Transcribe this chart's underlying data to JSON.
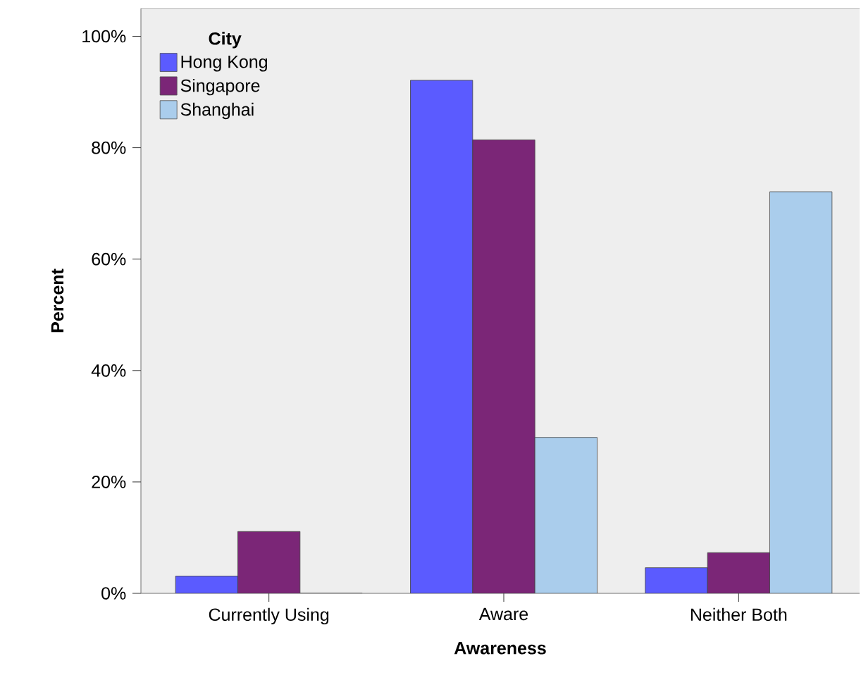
{
  "chart_data": {
    "type": "bar",
    "xlabel": "Awareness",
    "ylabel": "Percent",
    "legend_title": "City",
    "categories": [
      "Currently Using",
      "Aware",
      "Neither Both"
    ],
    "series": [
      {
        "name": "Hong Kong",
        "color": "#5b5bff",
        "values": [
          3.1,
          92.1,
          4.6
        ]
      },
      {
        "name": "Singapore",
        "color": "#7b2677",
        "values": [
          11.1,
          81.4,
          7.3
        ]
      },
      {
        "name": "Shanghai",
        "color": "#aacdec",
        "values": [
          0,
          28.0,
          72.1
        ]
      }
    ],
    "ylim": [
      0,
      105
    ],
    "yticks": [
      {
        "value": 0,
        "label": "0%"
      },
      {
        "value": 20,
        "label": "20%"
      },
      {
        "value": 40,
        "label": "40%"
      },
      {
        "value": 60,
        "label": "60%"
      },
      {
        "value": 80,
        "label": "80%"
      },
      {
        "value": 100,
        "label": "100%"
      }
    ],
    "grid": false,
    "legend": "top left"
  }
}
